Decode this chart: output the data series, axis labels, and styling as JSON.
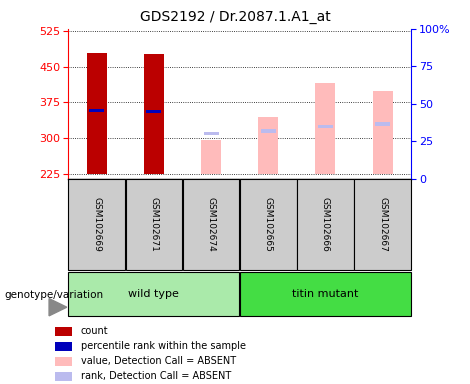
{
  "title": "GDS2192 / Dr.2087.1.A1_at",
  "samples": [
    "GSM102669",
    "GSM102671",
    "GSM102674",
    "GSM102665",
    "GSM102666",
    "GSM102667"
  ],
  "ylim_left": [
    215,
    530
  ],
  "yticks_left": [
    225,
    300,
    375,
    450,
    525
  ],
  "ytick_right_labels": [
    "0",
    "25",
    "50",
    "75",
    "100%"
  ],
  "yticks_right": [
    0,
    25,
    50,
    75,
    100
  ],
  "red_count": [
    480,
    478,
    null,
    null,
    null,
    null
  ],
  "blue_rank": [
    358,
    356,
    null,
    null,
    null,
    null
  ],
  "pink_value_absent": [
    null,
    null,
    297,
    345,
    415,
    400
  ],
  "lightblue_rank_absent": [
    null,
    null,
    310,
    315,
    325,
    330
  ],
  "baseline": 225,
  "bar_width": 0.35,
  "colors": {
    "red": "#bb0000",
    "blue": "#0000bb",
    "pink": "#ffbbbb",
    "lightblue": "#bbbbee",
    "bg_sample": "#cccccc",
    "bg_wildtype": "#aaeaaa",
    "bg_titin": "#44dd44"
  },
  "legend": [
    {
      "label": "count",
      "color": "#bb0000"
    },
    {
      "label": "percentile rank within the sample",
      "color": "#0000bb"
    },
    {
      "label": "value, Detection Call = ABSENT",
      "color": "#ffbbbb"
    },
    {
      "label": "rank, Detection Call = ABSENT",
      "color": "#bbbbee"
    }
  ]
}
